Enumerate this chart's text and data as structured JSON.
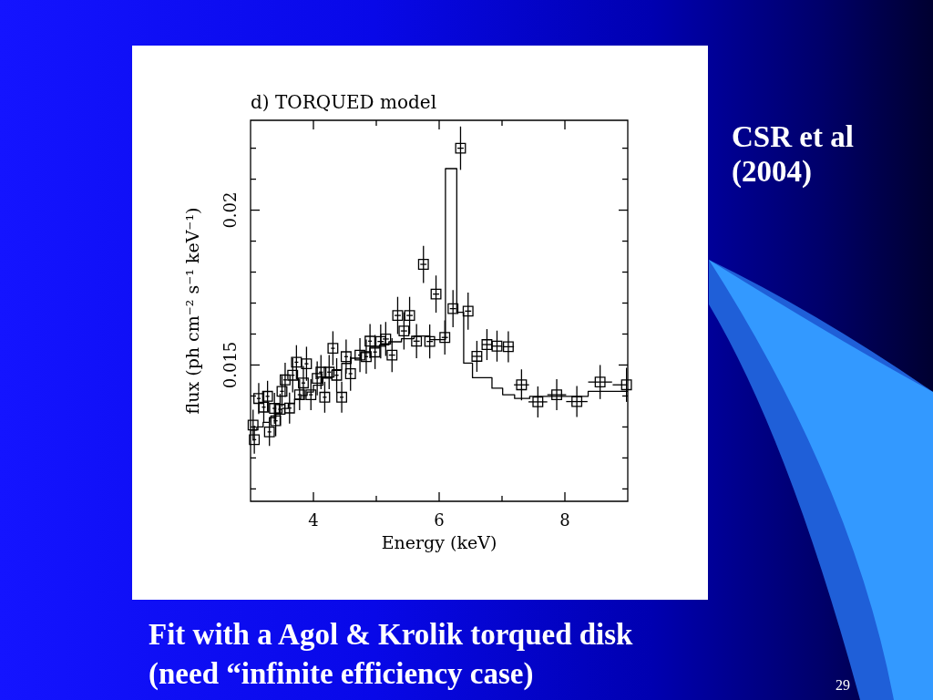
{
  "chart_data": {
    "type": "scatter",
    "title": "d) TORQUED model",
    "xlabel": "Energy (keV)",
    "ylabel": "flux (ph cm⁻² s⁻¹ keV⁻¹)",
    "annotations": [
      "CSR et al (2004)",
      "Fit with a Agol & Krolik torqued disk (need “infinite efficiency case)",
      "29"
    ],
    "xlim": [
      3,
      9
    ],
    "xticks": [
      4,
      {
        "value": 5,
        "label": null
      },
      6,
      {
        "value": 7,
        "label": null
      },
      8
    ],
    "ylim": [
      0.0106,
      0.0229
    ],
    "yticks": [
      {
        "value": 0.011,
        "label": null
      },
      {
        "value": 0.012,
        "label": null
      },
      {
        "value": 0.013,
        "label": null
      },
      {
        "value": 0.014,
        "label": null
      },
      0.015,
      {
        "value": 0.016,
        "label": null
      },
      {
        "value": 0.017,
        "label": null
      },
      {
        "value": 0.018,
        "label": null
      },
      {
        "value": 0.019,
        "label": null
      },
      0.02,
      {
        "value": 0.021,
        "label": null
      },
      {
        "value": 0.022,
        "label": null
      }
    ],
    "series": [
      {
        "type": "scatter",
        "marker": "square",
        "color": "#000000",
        "x": [
          3.04,
          3.06,
          3.13,
          3.21,
          3.27,
          3.3,
          3.38,
          3.4,
          3.47,
          3.5,
          3.55,
          3.62,
          3.67,
          3.73,
          3.78,
          3.84,
          3.89,
          3.96,
          4.06,
          4.12,
          4.18,
          4.25,
          4.31,
          4.37,
          4.45,
          4.52,
          4.59,
          4.74,
          4.84,
          4.9,
          4.98,
          5.07,
          5.15,
          5.25,
          5.34,
          5.44,
          5.53,
          5.64,
          5.75,
          5.85,
          5.95,
          6.09,
          6.22,
          6.34,
          6.46,
          6.6,
          6.76,
          6.92,
          7.1,
          7.31,
          7.57,
          7.87,
          8.19,
          8.56,
          8.98
        ],
        "values": [
          0.01306,
          0.01259,
          0.01392,
          0.01364,
          0.01399,
          0.01284,
          0.0136,
          0.0132,
          0.01357,
          0.01415,
          0.01452,
          0.01361,
          0.01467,
          0.01509,
          0.01404,
          0.01442,
          0.01504,
          0.01404,
          0.01457,
          0.01477,
          0.01396,
          0.01477,
          0.01554,
          0.01467,
          0.01396,
          0.01527,
          0.01472,
          0.01532,
          0.01527,
          0.01577,
          0.01542,
          0.01576,
          0.01584,
          0.01532,
          0.0166,
          0.0161,
          0.0166,
          0.01577,
          0.01825,
          0.01576,
          0.01729,
          0.01589,
          0.01682,
          0.022,
          0.01674,
          0.01528,
          0.01566,
          0.01561,
          0.01559,
          0.01436,
          0.01381,
          0.01404,
          0.01382,
          0.01445,
          0.01436
        ],
        "errors": [
          0.0005,
          0.00045,
          0.0005,
          0.0005,
          0.0005,
          0.00045,
          0.0005,
          0.0005,
          0.0005,
          0.0005,
          0.00055,
          0.0005,
          0.00055,
          0.00055,
          0.0005,
          0.00055,
          0.00055,
          0.0005,
          0.00055,
          0.00055,
          0.0005,
          0.00055,
          0.00055,
          0.00055,
          0.0005,
          0.00055,
          0.00055,
          0.00055,
          0.00055,
          0.00055,
          0.00055,
          0.00055,
          0.00055,
          0.00055,
          0.0006,
          0.0006,
          0.0006,
          0.00055,
          0.0006,
          0.00055,
          0.0006,
          0.00055,
          0.0006,
          0.0007,
          0.0006,
          0.0005,
          0.0005,
          0.0005,
          0.0005,
          0.0005,
          0.0005,
          0.0005,
          0.0005,
          0.00055,
          0.00055
        ],
        "xerrors": [
          null,
          0.03,
          0.03,
          0.03,
          0.03,
          0.03,
          0.03,
          0.03,
          0.03,
          0.03,
          0.03,
          0.03,
          0.03,
          0.03,
          0.03,
          0.03,
          0.03,
          0.03,
          0.03,
          0.03,
          0.03,
          0.03,
          0.03,
          0.03,
          0.03,
          0.03,
          0.03,
          0.03,
          0.03,
          0.03,
          0.03,
          0.05,
          0.05,
          0.05,
          0.05,
          0.05,
          0.05,
          0.05,
          0.05,
          0.05,
          0.05,
          0.05,
          0.05,
          0.05,
          0.05,
          0.08,
          0.08,
          0.08,
          0.09,
          0.12,
          0.15,
          0.15,
          0.17,
          0.19,
          [
            8.76,
            8.99
          ]
        ]
      },
      {
        "type": "step",
        "marker": "none",
        "color": "#000000",
        "x": [
          3.0,
          3.1,
          3.2,
          3.3,
          3.4,
          3.5,
          3.6,
          3.7,
          3.8,
          3.9,
          4.0,
          4.15,
          4.3,
          4.45,
          4.6,
          4.75,
          4.9,
          5.05,
          5.2,
          5.4,
          5.6,
          5.85,
          6.1,
          6.28,
          6.39,
          6.53,
          6.84,
          7.01,
          7.2,
          7.44,
          8.37,
          8.75,
          9.0
        ],
        "values": [
          0.01277,
          0.0129,
          0.013,
          0.01315,
          0.0133,
          0.01345,
          0.0136,
          0.01375,
          0.0139,
          0.01402,
          0.01413,
          0.01435,
          0.01458,
          0.01485,
          0.01505,
          0.01522,
          0.0154,
          0.01555,
          0.01565,
          0.01575,
          0.01585,
          0.01594,
          0.01582,
          0.02134,
          0.0167,
          0.01506,
          0.01459,
          0.01425,
          0.01404,
          0.01392,
          0.01399,
          0.01415,
          0.01415
        ]
      }
    ]
  }
}
